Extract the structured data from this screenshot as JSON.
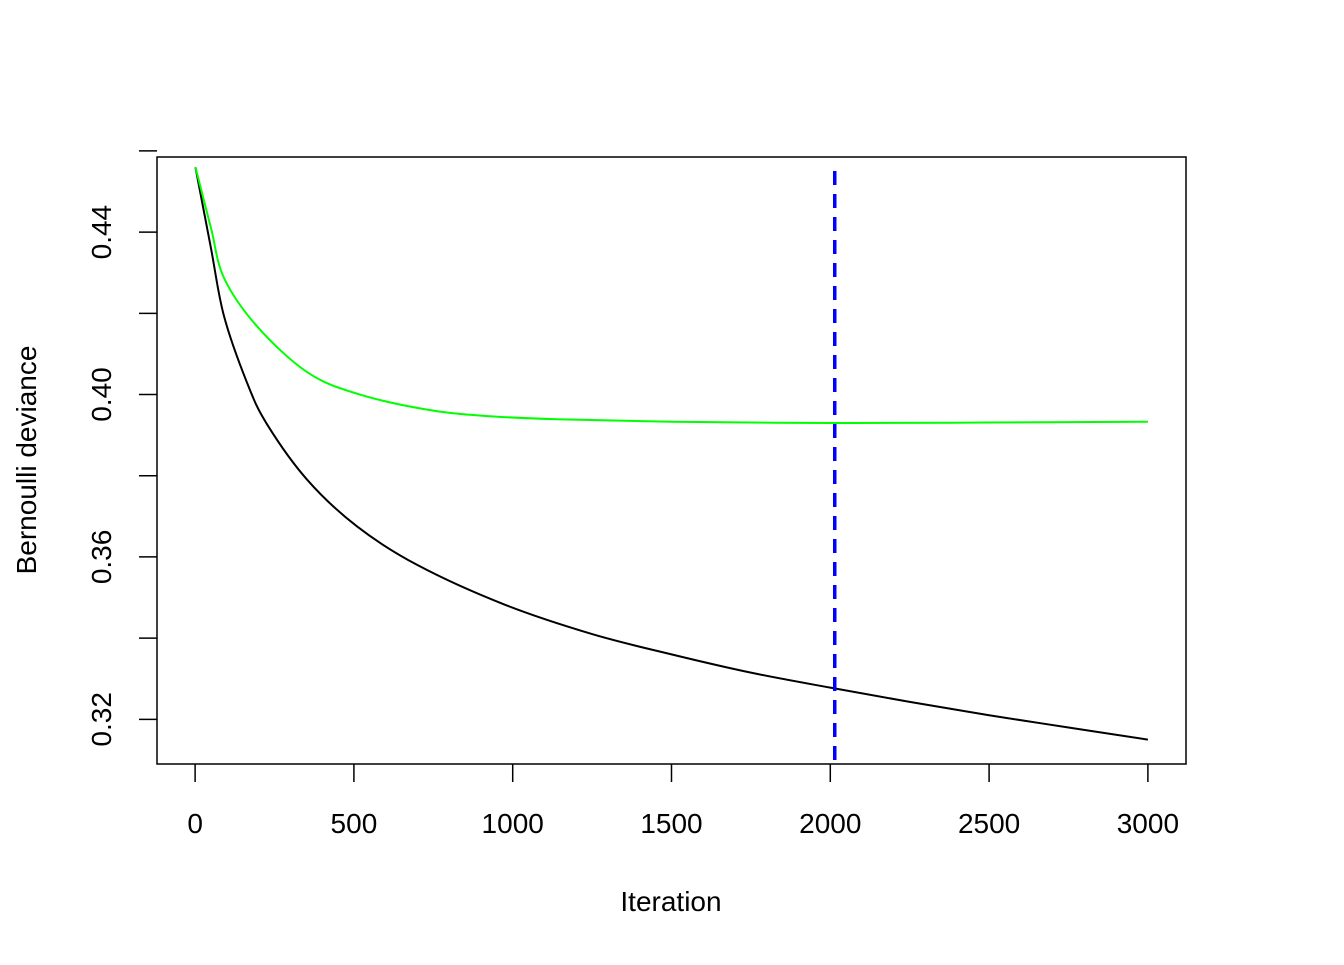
{
  "chart_data": {
    "type": "line",
    "title": "",
    "xlabel": "Iteration",
    "ylabel": "Bernoulli deviance",
    "xlim": [
      -120,
      3120
    ],
    "ylim": [
      0.309,
      0.4585
    ],
    "xticks": [
      0,
      500,
      1000,
      1500,
      2000,
      2500,
      3000
    ],
    "xtick_labels": [
      "0",
      "500",
      "1000",
      "1500",
      "2000",
      "2500",
      "3000"
    ],
    "yticks": [
      0.32,
      0.34,
      0.36,
      0.38,
      0.4,
      0.42,
      0.44,
      0.46
    ],
    "ytick_labels": [
      "0.32",
      "",
      "0.36",
      "",
      "0.40",
      "",
      "0.44",
      ""
    ],
    "grid": false,
    "series": [
      {
        "color": "#000000",
        "x": [
          1,
          50,
          91,
          164,
          227,
          353,
          510,
          700,
          973,
          1250,
          1500,
          1750,
          2000,
          2250,
          2500,
          2750,
          3000
        ],
        "y": [
          0.456,
          0.436,
          0.4193,
          0.4028,
          0.3926,
          0.379,
          0.3675,
          0.358,
          0.3483,
          0.341,
          0.336,
          0.3315,
          0.3278,
          0.3243,
          0.321,
          0.318,
          0.315
        ]
      },
      {
        "color": "#00ff00",
        "x": [
          1,
          50,
          91,
          195,
          353,
          510,
          721,
          900,
          1140,
          1500,
          2000,
          2500,
          3000
        ],
        "y": [
          0.456,
          0.441,
          0.4287,
          0.4168,
          0.4055,
          0.4002,
          0.3964,
          0.3948,
          0.3939,
          0.3933,
          0.393,
          0.3931,
          0.3933
        ]
      }
    ],
    "vline": {
      "x": 2014,
      "color": "#0000ff",
      "style": "dashed"
    }
  }
}
